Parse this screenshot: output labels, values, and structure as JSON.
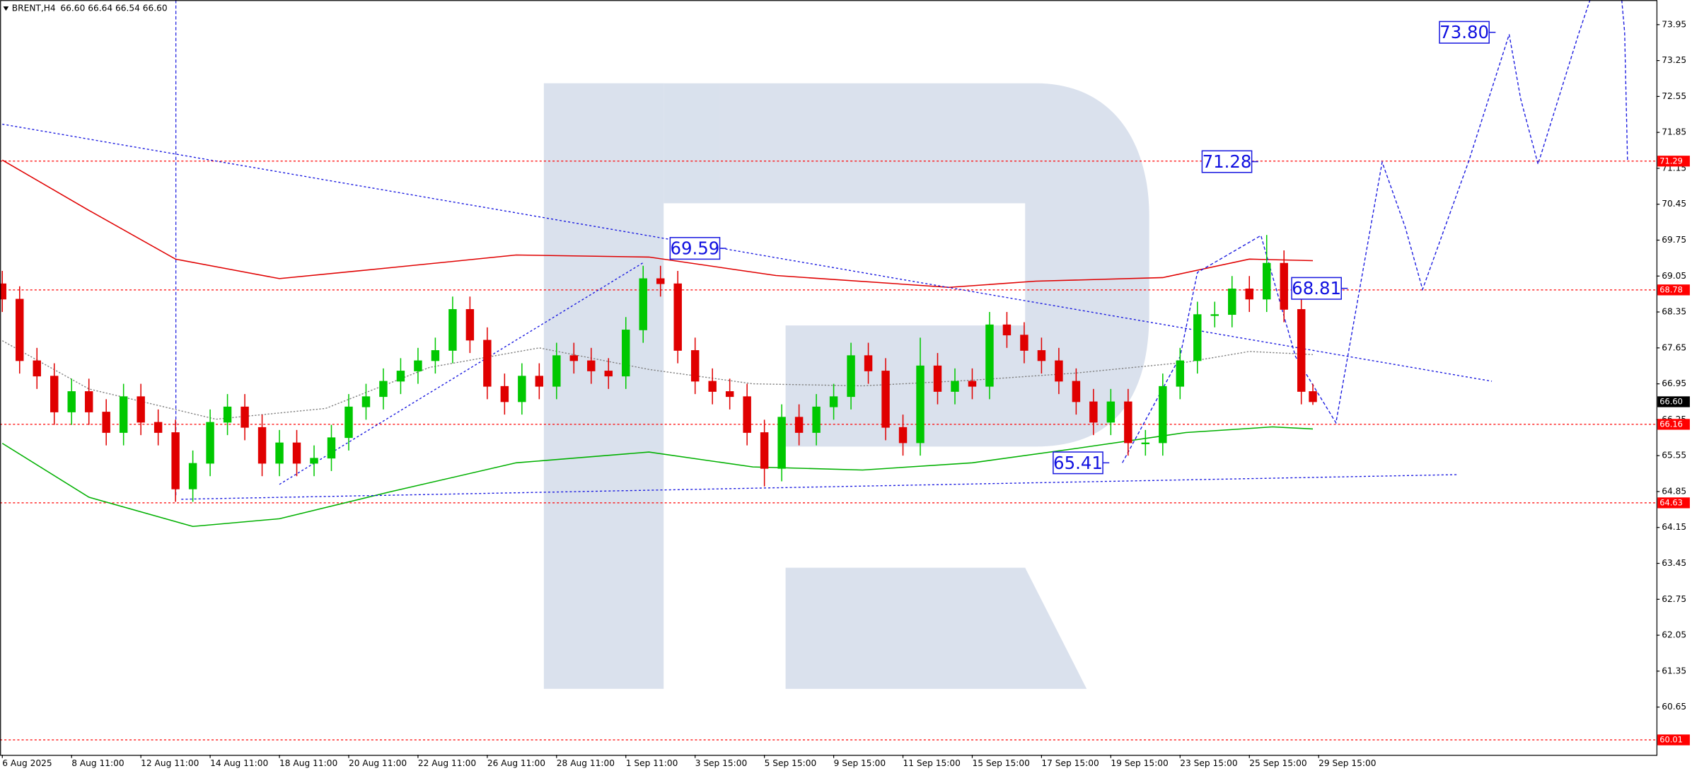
{
  "chart_data": {
    "type": "candlestick",
    "header": {
      "symbol": "BRENT,H4",
      "quote": "66.60 66.64 66.54 66.60"
    },
    "up_color": "#00c800",
    "down_color": "#e00000",
    "x": [
      0,
      3,
      6,
      9,
      12,
      15,
      18,
      21,
      24,
      27,
      30,
      33,
      36,
      39,
      42,
      45,
      48,
      51,
      54,
      57,
      60,
      63,
      66,
      69,
      72,
      75,
      78,
      81,
      84,
      87,
      90,
      93,
      96,
      99,
      102,
      105,
      108,
      111,
      114,
      117,
      120,
      123,
      126,
      129,
      132,
      135,
      138,
      141,
      144,
      147,
      150,
      153,
      156,
      159,
      162,
      165,
      168,
      171,
      174,
      177,
      180,
      183,
      186,
      189,
      192,
      195,
      198,
      201,
      204,
      207,
      210,
      213,
      216,
      219,
      222,
      225,
      227
    ],
    "open": [
      68.9,
      68.6,
      67.4,
      67.1,
      66.4,
      66.8,
      66.4,
      66.0,
      66.7,
      66.2,
      66.0,
      64.9,
      65.4,
      66.2,
      66.5,
      66.1,
      65.4,
      65.8,
      65.4,
      65.5,
      65.9,
      66.5,
      66.7,
      67.0,
      67.2,
      67.4,
      67.6,
      68.4,
      67.8,
      66.9,
      66.6,
      67.1,
      66.9,
      67.5,
      67.4,
      67.2,
      67.1,
      68.0,
      69.0,
      68.9,
      67.6,
      67.0,
      66.8,
      66.7,
      66.0,
      65.3,
      66.3,
      66.0,
      66.5,
      66.7,
      67.5,
      67.2,
      66.1,
      65.8,
      67.3,
      66.8,
      67.0,
      66.9,
      68.1,
      67.9,
      67.6,
      67.4,
      67.0,
      66.6,
      66.2,
      66.6,
      65.8,
      65.8,
      66.9,
      67.4,
      68.3,
      68.3,
      68.8,
      68.6,
      69.3,
      68.4,
      66.8
    ],
    "high": [
      69.15,
      68.85,
      67.65,
      67.35,
      67.05,
      67.05,
      66.65,
      66.95,
      66.95,
      66.45,
      66.25,
      65.65,
      66.45,
      66.75,
      66.75,
      66.35,
      66.05,
      66.05,
      65.75,
      66.15,
      66.75,
      66.95,
      67.25,
      67.45,
      67.65,
      67.85,
      68.65,
      68.65,
      68.05,
      67.15,
      67.35,
      67.35,
      67.75,
      67.75,
      67.65,
      67.45,
      68.25,
      69.25,
      69.25,
      69.15,
      67.85,
      67.25,
      67.05,
      66.95,
      66.25,
      66.55,
      66.55,
      66.75,
      66.95,
      67.75,
      67.75,
      67.45,
      66.35,
      67.85,
      67.55,
      67.25,
      67.25,
      68.35,
      68.35,
      68.15,
      67.85,
      67.65,
      67.25,
      66.85,
      66.85,
      66.85,
      66.05,
      67.15,
      67.65,
      68.55,
      68.55,
      69.05,
      69.05,
      69.85,
      69.55,
      68.65,
      66.95
    ],
    "low": [
      68.35,
      67.15,
      66.85,
      66.15,
      66.15,
      66.15,
      65.75,
      65.75,
      65.95,
      65.75,
      64.65,
      64.65,
      65.15,
      65.95,
      65.85,
      65.15,
      65.15,
      65.15,
      65.15,
      65.25,
      65.65,
      66.25,
      66.45,
      66.75,
      66.95,
      67.15,
      67.35,
      67.55,
      66.65,
      66.35,
      66.35,
      66.65,
      66.65,
      67.15,
      66.95,
      66.85,
      66.85,
      67.75,
      68.65,
      67.35,
      66.75,
      66.55,
      66.45,
      65.75,
      64.95,
      65.05,
      65.75,
      65.75,
      66.25,
      66.45,
      66.95,
      65.85,
      65.55,
      65.55,
      66.55,
      66.55,
      66.65,
      66.65,
      67.65,
      67.35,
      67.15,
      66.75,
      66.35,
      65.95,
      65.95,
      65.55,
      65.55,
      65.55,
      66.65,
      67.15,
      68.05,
      68.05,
      68.35,
      68.35,
      68.15,
      66.55,
      66.54
    ],
    "close": [
      68.6,
      67.4,
      67.1,
      66.4,
      66.8,
      66.4,
      66.0,
      66.7,
      66.2,
      66.0,
      64.9,
      65.4,
      66.2,
      66.5,
      66.1,
      65.4,
      65.8,
      65.4,
      65.5,
      65.9,
      66.5,
      66.7,
      67.0,
      67.2,
      67.4,
      67.6,
      68.4,
      67.8,
      66.9,
      66.6,
      67.1,
      66.9,
      67.5,
      67.4,
      67.2,
      67.1,
      68.0,
      69.0,
      68.9,
      67.6,
      67.0,
      66.8,
      66.7,
      66.0,
      65.3,
      66.3,
      66.0,
      66.5,
      66.7,
      67.5,
      67.2,
      66.1,
      65.8,
      67.3,
      66.8,
      67.0,
      66.9,
      68.1,
      67.9,
      67.6,
      67.4,
      67.0,
      66.6,
      66.2,
      66.6,
      65.8,
      65.8,
      66.9,
      67.4,
      68.3,
      68.3,
      68.8,
      68.6,
      69.3,
      68.4,
      66.8,
      66.6
    ],
    "xlim": [
      -0.4,
      286.5
    ],
    "ylim": [
      59.72,
      74.43
    ],
    "yticks": [
      73.95,
      73.25,
      72.55,
      71.85,
      71.15,
      70.45,
      69.75,
      69.05,
      68.35,
      67.65,
      66.95,
      66.25,
      65.55,
      64.85,
      64.15,
      63.45,
      62.75,
      62.05,
      61.35,
      60.65
    ],
    "xticks": [
      {
        "value": 0,
        "label": "6 Aug 2025"
      },
      {
        "value": 12,
        "label": "8 Aug 11:00"
      },
      {
        "value": 24,
        "label": "12 Aug 11:00"
      },
      {
        "value": 36,
        "label": "14 Aug 11:00"
      },
      {
        "value": 48,
        "label": "18 Aug 11:00"
      },
      {
        "value": 60,
        "label": "20 Aug 11:00"
      },
      {
        "value": 72,
        "label": "22 Aug 11:00"
      },
      {
        "value": 84,
        "label": "26 Aug 11:00"
      },
      {
        "value": 96,
        "label": "28 Aug 11:00"
      },
      {
        "value": 108,
        "label": "1 Sep 11:00"
      },
      {
        "value": 120,
        "label": "3 Sep 15:00"
      },
      {
        "value": 132,
        "label": "5 Sep 15:00"
      },
      {
        "value": 144,
        "label": "9 Sep 15:00"
      },
      {
        "value": 156,
        "label": "11 Sep 15:00"
      },
      {
        "value": 168,
        "label": "15 Sep 15:00"
      },
      {
        "value": 180,
        "label": "17 Sep 15:00"
      },
      {
        "value": 192,
        "label": "19 Sep 15:00"
      },
      {
        "value": 204,
        "label": "23 Sep 15:00"
      },
      {
        "value": 216,
        "label": "25 Sep 15:00"
      },
      {
        "value": 228,
        "label": "29 Sep 15:00"
      }
    ],
    "levels": [
      {
        "value": 71.29,
        "color": "#ff0000"
      },
      {
        "value": 68.78,
        "color": "#ff0000"
      },
      {
        "value": 66.16,
        "color": "#ff0000"
      },
      {
        "value": 64.63,
        "color": "#ff0000"
      },
      {
        "value": 60.01,
        "color": "#ff0000"
      }
    ],
    "last_price": {
      "value": 66.6,
      "label": "66.60"
    },
    "indicators": [
      {
        "color": "#e00000",
        "style": "solid",
        "x": [
          0,
          15,
          30,
          48,
          67,
          89,
          112,
          134,
          164,
          179,
          201,
          216,
          227
        ],
        "values": [
          71.31,
          70.33,
          69.38,
          69.0,
          69.21,
          69.46,
          69.42,
          69.06,
          68.83,
          68.95,
          69.02,
          69.38,
          69.35
        ]
      },
      {
        "color": "#808080",
        "style": "dotted",
        "x": [
          0,
          15,
          37,
          56,
          74,
          93,
          112,
          130,
          149,
          168,
          186,
          205,
          216,
          227
        ],
        "values": [
          67.79,
          66.85,
          66.26,
          66.47,
          67.27,
          67.65,
          67.23,
          66.95,
          66.91,
          67.02,
          67.16,
          67.37,
          67.58,
          67.52
        ]
      },
      {
        "color": "#00b000",
        "style": "solid",
        "x": [
          0,
          15,
          33,
          48,
          67,
          89,
          112,
          130,
          149,
          168,
          186,
          205,
          220,
          227
        ],
        "values": [
          65.79,
          64.74,
          64.17,
          64.32,
          64.84,
          65.41,
          65.62,
          65.33,
          65.27,
          65.41,
          65.69,
          66.0,
          66.11,
          66.07
        ]
      }
    ],
    "trendlines": [
      {
        "color": "#1a1ae0",
        "x": [
          0,
          258
        ],
        "values": [
          72.01,
          67.0
        ]
      },
      {
        "color": "#1a1ae0",
        "x": [
          31,
          252
        ],
        "values": [
          64.7,
          65.18
        ]
      },
      {
        "color": "#1a1ae0",
        "x": [
          48,
          111
        ],
        "values": [
          64.99,
          69.31
        ]
      }
    ],
    "forecast": {
      "color": "#1a1ae0",
      "x": [
        194,
        204,
        207,
        218,
        224,
        231,
        239,
        243,
        246,
        254,
        261,
        263,
        266,
        273,
        275,
        null,
        280.5,
        281,
        281.5
      ],
      "values": [
        65.41,
        67.48,
        69.12,
        69.84,
        67.48,
        66.19,
        71.27,
        70.0,
        68.79,
        71.29,
        73.76,
        72.5,
        71.23,
        73.76,
        74.43,
        null,
        74.43,
        73.8,
        71.29
      ]
    },
    "annotations": [
      69.59,
      71.28,
      68.81,
      {
        "value": 73.8,
        "label": "73.80"
      },
      65.41
    ]
  }
}
